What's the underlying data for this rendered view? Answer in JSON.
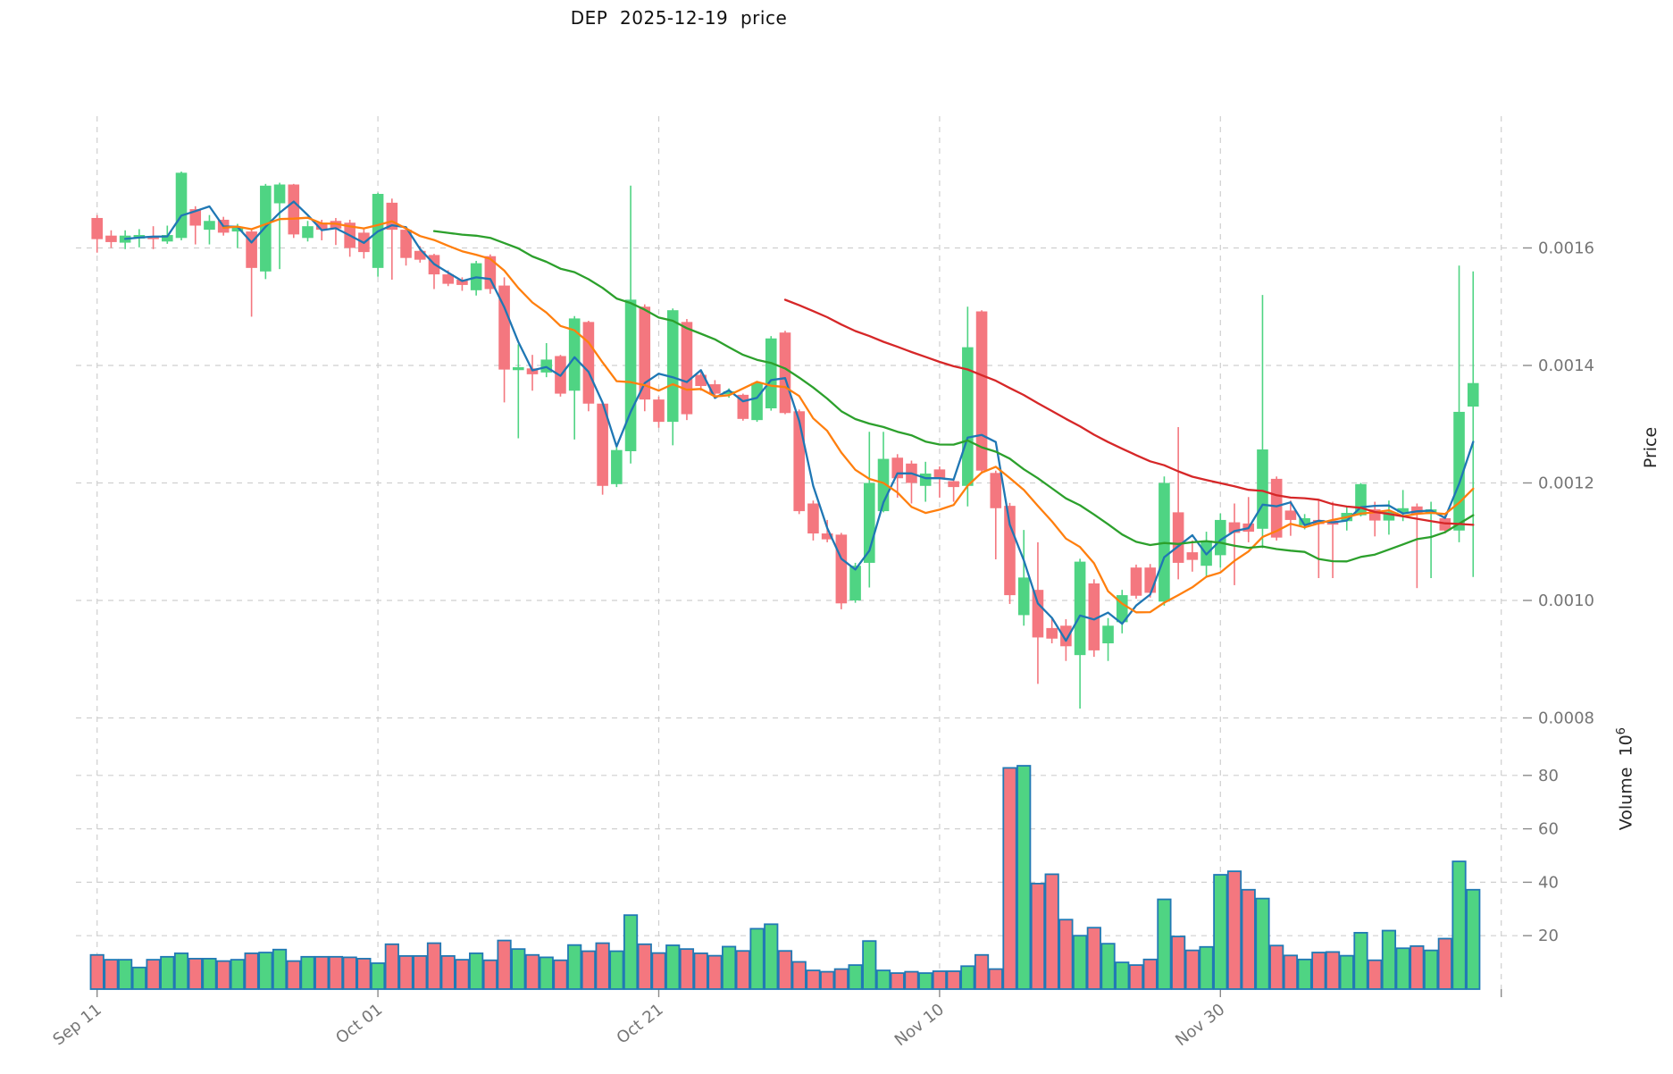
{
  "title": "DEP  2025-12-19  price",
  "chart_data": {
    "type": "candlestick",
    "subtype": "ohlc-with-volume-panel",
    "title": "DEP  2025-12-19  price",
    "ylabel": "Price",
    "ylabel_volume": "Volume 10⁶",
    "x_axis": {
      "tick_positions": [
        0,
        20,
        40,
        60,
        80,
        100
      ],
      "tick_labels": [
        "Sep 11",
        "Oct 01",
        "Oct 21",
        "Nov 10",
        "Nov 30",
        ""
      ]
    },
    "price_axis": {
      "ticks": [
        0.0016,
        0.0014,
        0.0012,
        0.001,
        0.0008
      ],
      "range": [
        0.00077,
        0.00178
      ]
    },
    "volume_axis": {
      "ticks": [
        80,
        60,
        40,
        20
      ],
      "unit_millions": true,
      "range": [
        0,
        96
      ]
    },
    "grid": true,
    "legend": "none",
    "moving_averages": [
      {
        "window": 3,
        "color": "#1f77b4"
      },
      {
        "window": 10,
        "color": "#ff7f0e"
      },
      {
        "window": 25,
        "color": "#2ca02c"
      },
      {
        "window": 50,
        "color": "#d62728"
      }
    ],
    "colors": {
      "up": "#4fd483",
      "down": "#f4777f",
      "volume_edge": "#2179b5",
      "grid": "#cfcfcf",
      "tick_text": "#757575"
    },
    "columns": [
      "date",
      "open",
      "high",
      "low",
      "close",
      "volume_millions"
    ],
    "candles": [
      [
        "2025-09-11",
        0.001651,
        0.001656,
        0.001592,
        0.001615,
        12.8
      ],
      [
        "2025-09-12",
        0.001621,
        0.00163,
        0.0016,
        0.00161,
        11.0
      ],
      [
        "2025-09-13",
        0.001609,
        0.00163,
        0.001598,
        0.001621,
        11.0
      ],
      [
        "2025-09-14",
        0.001616,
        0.001632,
        0.001601,
        0.001622,
        8.1
      ],
      [
        "2025-09-15",
        0.00162,
        0.001637,
        0.001598,
        0.001615,
        11.0
      ],
      [
        "2025-09-16",
        0.001611,
        0.001638,
        0.001607,
        0.001622,
        12.1
      ],
      [
        "2025-09-17",
        0.001617,
        0.00173,
        0.001613,
        0.001728,
        13.4
      ],
      [
        "2025-09-18",
        0.001666,
        0.001671,
        0.001606,
        0.001638,
        11.4
      ],
      [
        "2025-09-19",
        0.001631,
        0.001656,
        0.001606,
        0.001646,
        11.4
      ],
      [
        "2025-09-20",
        0.001648,
        0.001653,
        0.001621,
        0.001626,
        10.5
      ],
      [
        "2025-09-21",
        0.001628,
        0.001641,
        0.0016,
        0.001636,
        11.0
      ],
      [
        "2025-09-22",
        0.001628,
        0.001632,
        0.001483,
        0.001566,
        13.4
      ],
      [
        "2025-09-23",
        0.00156,
        0.001709,
        0.001547,
        0.001706,
        13.7
      ],
      [
        "2025-09-24",
        0.001676,
        0.001711,
        0.001564,
        0.001708,
        14.8
      ],
      [
        "2025-09-25",
        0.001708,
        0.001709,
        0.001617,
        0.001623,
        10.5
      ],
      [
        "2025-09-26",
        0.001617,
        0.001646,
        0.001611,
        0.001637,
        12.1
      ],
      [
        "2025-09-27",
        0.001643,
        0.001648,
        0.001613,
        0.001631,
        12.1
      ],
      [
        "2025-09-28",
        0.001646,
        0.001651,
        0.001605,
        0.001633,
        12.1
      ],
      [
        "2025-09-29",
        0.001643,
        0.001648,
        0.001585,
        0.0016,
        11.9
      ],
      [
        "2025-09-30",
        0.001626,
        0.001632,
        0.001582,
        0.001593,
        11.4
      ],
      [
        "2025-10-01",
        0.001566,
        0.001694,
        0.001551,
        0.001692,
        9.7
      ],
      [
        "2025-10-02",
        0.001677,
        0.001684,
        0.001546,
        0.001631,
        16.8
      ],
      [
        "2025-10-03",
        0.001631,
        0.001633,
        0.00157,
        0.001583,
        12.4
      ],
      [
        "2025-10-04",
        0.001595,
        0.001603,
        0.001575,
        0.00158,
        12.4
      ],
      [
        "2025-10-05",
        0.001588,
        0.00159,
        0.00153,
        0.001555,
        17.2
      ],
      [
        "2025-10-06",
        0.001555,
        0.001562,
        0.001535,
        0.001539,
        12.4
      ],
      [
        "2025-10-07",
        0.001546,
        0.00155,
        0.001527,
        0.001537,
        11.0
      ],
      [
        "2025-10-08",
        0.001528,
        0.001578,
        0.001519,
        0.001574,
        13.4
      ],
      [
        "2025-10-09",
        0.001586,
        0.001589,
        0.001522,
        0.00153,
        10.8
      ],
      [
        "2025-10-10",
        0.001536,
        0.00155,
        0.001337,
        0.001393,
        18.2
      ],
      [
        "2025-10-11",
        0.001392,
        0.001436,
        0.001276,
        0.001397,
        15.0
      ],
      [
        "2025-10-12",
        0.001395,
        0.001418,
        0.001357,
        0.001385,
        12.8
      ],
      [
        "2025-10-13",
        0.001388,
        0.001438,
        0.00138,
        0.00141,
        11.9
      ],
      [
        "2025-10-14",
        0.001416,
        0.001418,
        0.001347,
        0.001352,
        10.8
      ],
      [
        "2025-10-15",
        0.001357,
        0.001484,
        0.001274,
        0.00148,
        16.5
      ],
      [
        "2025-10-16",
        0.001474,
        0.001476,
        0.001322,
        0.001335,
        14.2
      ],
      [
        "2025-10-17",
        0.001335,
        0.001337,
        0.00118,
        0.001195,
        17.2
      ],
      [
        "2025-10-18",
        0.001198,
        0.001261,
        0.001193,
        0.001256,
        14.2
      ],
      [
        "2025-10-19",
        0.001254,
        0.001706,
        0.001233,
        0.001512,
        27.7
      ],
      [
        "2025-10-20",
        0.0015,
        0.001504,
        0.001322,
        0.001342,
        16.8
      ],
      [
        "2025-10-21",
        0.001342,
        0.001347,
        0.001294,
        0.001304,
        13.5
      ],
      [
        "2025-10-22",
        0.001304,
        0.001497,
        0.001264,
        0.001494,
        16.4
      ],
      [
        "2025-10-23",
        0.001474,
        0.001479,
        0.001307,
        0.001317,
        15.0
      ],
      [
        "2025-10-24",
        0.001384,
        0.001393,
        0.001357,
        0.001365,
        13.4
      ],
      [
        "2025-10-25",
        0.001368,
        0.001375,
        0.001347,
        0.001352,
        12.5
      ],
      [
        "2025-10-26",
        0.001351,
        0.001361,
        0.001345,
        0.001356,
        15.9
      ],
      [
        "2025-10-27",
        0.00135,
        0.001352,
        0.001306,
        0.001309,
        14.3
      ],
      [
        "2025-10-28",
        0.001307,
        0.001373,
        0.001304,
        0.00137,
        22.6
      ],
      [
        "2025-10-29",
        0.001327,
        0.00145,
        0.001323,
        0.001446,
        24.3
      ],
      [
        "2025-10-30",
        0.001456,
        0.001459,
        0.001317,
        0.001319,
        14.3
      ],
      [
        "2025-10-31",
        0.001322,
        0.001325,
        0.001147,
        0.001152,
        10.2
      ],
      [
        "2025-11-01",
        0.001165,
        0.00117,
        0.001102,
        0.001114,
        7.0
      ],
      [
        "2025-11-02",
        0.001114,
        0.001137,
        0.001099,
        0.001104,
        6.5
      ],
      [
        "2025-11-03",
        0.001112,
        0.001115,
        0.000985,
        0.000995,
        7.5
      ],
      [
        "2025-11-04",
        0.001,
        0.001064,
        0.000996,
        0.001059,
        9.0
      ],
      [
        "2025-11-05",
        0.001064,
        0.001287,
        0.001022,
        0.0012,
        18.0
      ],
      [
        "2025-11-06",
        0.001152,
        0.001287,
        0.00115,
        0.001241,
        7.0
      ],
      [
        "2025-11-07",
        0.001243,
        0.001249,
        0.001175,
        0.001208,
        6.0
      ],
      [
        "2025-11-08",
        0.001233,
        0.001238,
        0.001165,
        0.0012,
        6.5
      ],
      [
        "2025-11-09",
        0.001195,
        0.001236,
        0.001168,
        0.001216,
        6.0
      ],
      [
        "2025-11-10",
        0.001223,
        0.001228,
        0.001175,
        0.001208,
        6.7
      ],
      [
        "2025-11-11",
        0.001203,
        0.001208,
        0.001168,
        0.001193,
        6.7
      ],
      [
        "2025-11-12",
        0.001195,
        0.0015,
        0.00116,
        0.001431,
        8.6
      ],
      [
        "2025-11-13",
        0.001492,
        0.001494,
        0.001216,
        0.001221,
        12.8
      ],
      [
        "2025-11-14",
        0.001217,
        0.001221,
        0.00107,
        0.001157,
        7.5
      ],
      [
        "2025-11-15",
        0.001161,
        0.001166,
        0.000994,
        0.001009,
        82.8
      ],
      [
        "2025-11-16",
        0.000975,
        0.00112,
        0.000957,
        0.001039,
        83.6
      ],
      [
        "2025-11-17",
        0.001018,
        0.001099,
        0.000858,
        0.000937,
        39.5
      ],
      [
        "2025-11-18",
        0.000953,
        0.00097,
        0.000927,
        0.000935,
        43.0
      ],
      [
        "2025-11-19",
        0.000957,
        0.000968,
        0.000897,
        0.000922,
        26.0
      ],
      [
        "2025-11-20",
        0.000907,
        0.001071,
        0.000816,
        0.001066,
        20.0
      ],
      [
        "2025-11-21",
        0.001029,
        0.001036,
        0.000904,
        0.000915,
        23.0
      ],
      [
        "2025-11-22",
        0.000927,
        0.00097,
        0.000897,
        0.000957,
        17.0
      ],
      [
        "2025-11-23",
        0.000963,
        0.001018,
        0.000944,
        0.001009,
        10.0
      ],
      [
        "2025-11-24",
        0.001056,
        0.001061,
        0.001003,
        0.001008,
        9.0
      ],
      [
        "2025-11-25",
        0.001056,
        0.001062,
        0.001005,
        0.001013,
        11.1
      ],
      [
        "2025-11-26",
        0.000998,
        0.001211,
        0.000991,
        0.0012,
        33.6
      ],
      [
        "2025-11-27",
        0.00115,
        0.001295,
        0.001036,
        0.001064,
        19.7
      ],
      [
        "2025-11-28",
        0.001082,
        0.001102,
        0.001049,
        0.001069,
        14.5
      ],
      [
        "2025-11-29",
        0.001059,
        0.001117,
        0.001041,
        0.001102,
        15.8
      ],
      [
        "2025-11-30",
        0.001077,
        0.001148,
        0.001056,
        0.001137,
        42.8
      ],
      [
        "2025-12-01",
        0.001133,
        0.001165,
        0.001026,
        0.001115,
        44.1
      ],
      [
        "2025-12-02",
        0.001131,
        0.001176,
        0.001099,
        0.001117,
        37.2
      ],
      [
        "2025-12-03",
        0.001122,
        0.00152,
        0.001089,
        0.001257,
        33.9
      ],
      [
        "2025-12-04",
        0.001207,
        0.001211,
        0.001102,
        0.001107,
        16.3
      ],
      [
        "2025-12-05",
        0.001153,
        0.00117,
        0.00111,
        0.001137,
        12.6
      ],
      [
        "2025-12-06",
        0.001128,
        0.001147,
        0.001121,
        0.00114,
        11.1
      ],
      [
        "2025-12-07",
        0.001137,
        0.00117,
        0.001038,
        0.00113,
        13.7
      ],
      [
        "2025-12-08",
        0.001136,
        0.001168,
        0.001038,
        0.001129,
        13.9
      ],
      [
        "2025-12-09",
        0.001135,
        0.00116,
        0.001119,
        0.001149,
        12.5
      ],
      [
        "2025-12-10",
        0.001145,
        0.0012,
        0.001143,
        0.001198,
        21.1
      ],
      [
        "2025-12-11",
        0.001155,
        0.001168,
        0.001109,
        0.001136,
        10.8
      ],
      [
        "2025-12-12",
        0.001136,
        0.00117,
        0.001112,
        0.001151,
        21.9
      ],
      [
        "2025-12-13",
        0.00115,
        0.001188,
        0.001135,
        0.001157,
        15.3
      ],
      [
        "2025-12-14",
        0.00116,
        0.001165,
        0.001021,
        0.001147,
        16.1
      ],
      [
        "2025-12-15",
        0.001147,
        0.001168,
        0.001038,
        0.001155,
        14.5
      ],
      [
        "2025-12-16",
        0.00114,
        0.001145,
        0.001114,
        0.001119,
        18.9
      ],
      [
        "2025-12-17",
        0.001119,
        0.00157,
        0.001099,
        0.001321,
        47.8
      ],
      [
        "2025-12-18",
        0.00133,
        0.00156,
        0.00104,
        0.00137,
        37.2
      ]
    ]
  }
}
